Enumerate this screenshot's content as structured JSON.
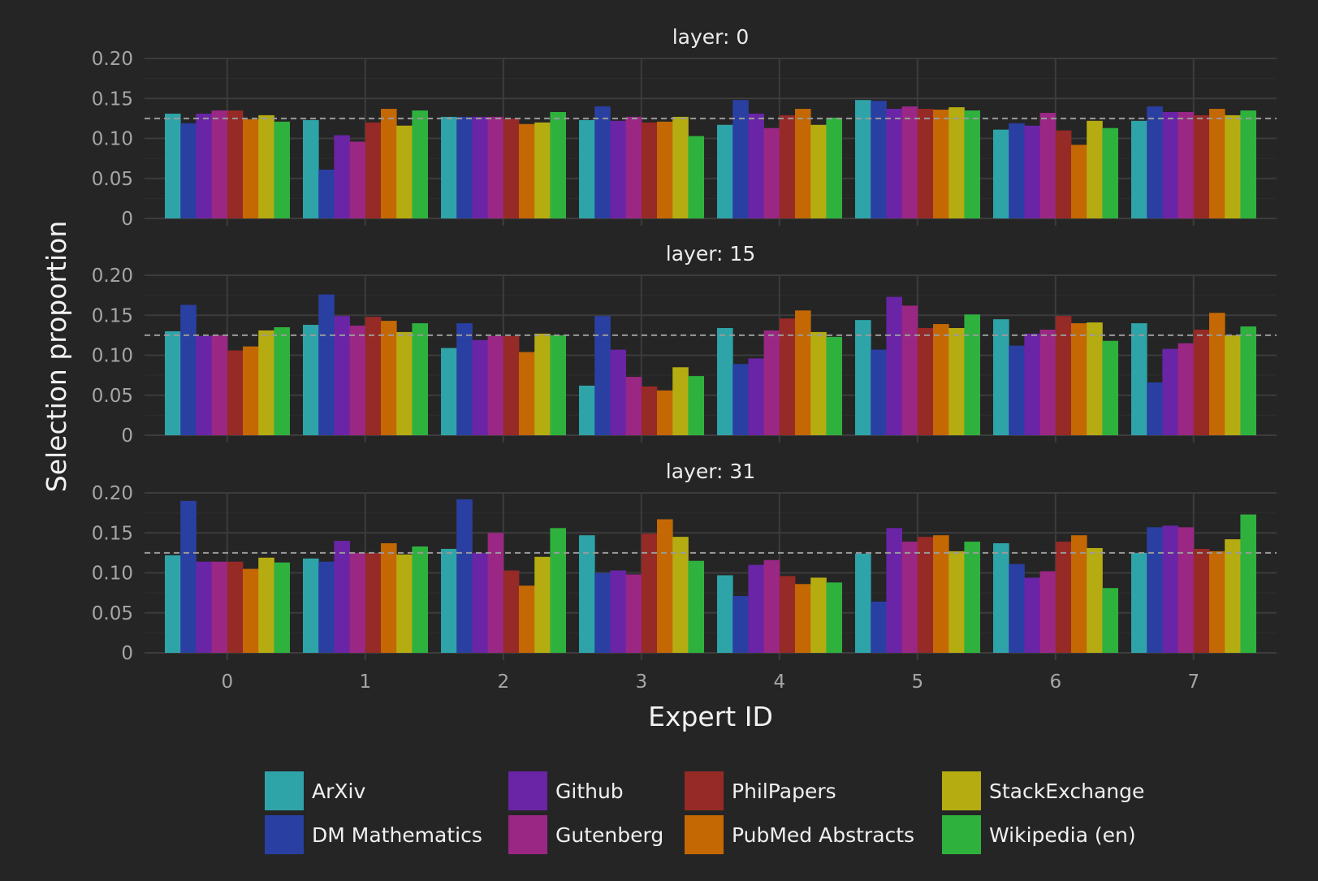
{
  "chart_data": {
    "type": "bar",
    "xlabel": "Expert ID",
    "ylabel": "Selection proportion",
    "categories": [
      "0",
      "1",
      "2",
      "3",
      "4",
      "5",
      "6",
      "7"
    ],
    "ylim": [
      0,
      0.2
    ],
    "yticks": [
      0,
      0.05,
      0.1,
      0.15,
      0.2
    ],
    "ytick_labels": [
      "0",
      "0.05",
      "0.10",
      "0.15",
      "0.20"
    ],
    "reference_line": 0.125,
    "grid": true,
    "legend_position": "bottom",
    "series_colors": {
      "ArXiv": "#2fa4a8",
      "DM Mathematics": "#2a3fa2",
      "Github": "#6a24a6",
      "Gutenberg": "#9a2784",
      "PhilPapers": "#962a26",
      "PubMed Abstracts": "#c46804",
      "StackExchange": "#b5ac12",
      "Wikipedia (en)": "#2fb13e"
    },
    "panels": [
      {
        "title": "layer: 0",
        "series": [
          {
            "name": "ArXiv",
            "values": [
              0.131,
              0.123,
              0.127,
              0.123,
              0.117,
              0.148,
              0.111,
              0.122
            ]
          },
          {
            "name": "DM Mathematics",
            "values": [
              0.119,
              0.061,
              0.127,
              0.14,
              0.148,
              0.147,
              0.119,
              0.14
            ]
          },
          {
            "name": "Github",
            "values": [
              0.131,
              0.104,
              0.127,
              0.122,
              0.131,
              0.137,
              0.116,
              0.133
            ]
          },
          {
            "name": "Gutenberg",
            "values": [
              0.135,
              0.096,
              0.127,
              0.127,
              0.113,
              0.14,
              0.132,
              0.133
            ]
          },
          {
            "name": "PhilPapers",
            "values": [
              0.135,
              0.12,
              0.125,
              0.12,
              0.129,
              0.137,
              0.11,
              0.129
            ]
          },
          {
            "name": "PubMed Abstracts",
            "values": [
              0.124,
              0.137,
              0.118,
              0.121,
              0.137,
              0.136,
              0.092,
              0.137
            ]
          },
          {
            "name": "StackExchange",
            "values": [
              0.129,
              0.116,
              0.12,
              0.127,
              0.117,
              0.139,
              0.122,
              0.129
            ]
          },
          {
            "name": "Wikipedia (en)",
            "values": [
              0.121,
              0.135,
              0.133,
              0.103,
              0.126,
              0.135,
              0.113,
              0.135
            ]
          }
        ]
      },
      {
        "title": "layer: 15",
        "series": [
          {
            "name": "ArXiv",
            "values": [
              0.13,
              0.138,
              0.109,
              0.062,
              0.134,
              0.144,
              0.145,
              0.14
            ]
          },
          {
            "name": "DM Mathematics",
            "values": [
              0.163,
              0.176,
              0.14,
              0.149,
              0.089,
              0.107,
              0.112,
              0.066
            ]
          },
          {
            "name": "Github",
            "values": [
              0.124,
              0.149,
              0.119,
              0.107,
              0.096,
              0.173,
              0.127,
              0.108
            ]
          },
          {
            "name": "Gutenberg",
            "values": [
              0.125,
              0.137,
              0.124,
              0.073,
              0.131,
              0.162,
              0.132,
              0.115
            ]
          },
          {
            "name": "PhilPapers",
            "values": [
              0.106,
              0.148,
              0.124,
              0.061,
              0.146,
              0.134,
              0.149,
              0.132
            ]
          },
          {
            "name": "PubMed Abstracts",
            "values": [
              0.111,
              0.143,
              0.104,
              0.056,
              0.156,
              0.139,
              0.14,
              0.153
            ]
          },
          {
            "name": "StackExchange",
            "values": [
              0.131,
              0.129,
              0.127,
              0.085,
              0.129,
              0.134,
              0.141,
              0.125
            ]
          },
          {
            "name": "Wikipedia (en)",
            "values": [
              0.135,
              0.14,
              0.125,
              0.074,
              0.123,
              0.151,
              0.118,
              0.136
            ]
          }
        ]
      },
      {
        "title": "layer: 31",
        "series": [
          {
            "name": "ArXiv",
            "values": [
              0.122,
              0.118,
              0.13,
              0.147,
              0.097,
              0.124,
              0.137,
              0.125
            ]
          },
          {
            "name": "DM Mathematics",
            "values": [
              0.19,
              0.114,
              0.192,
              0.1,
              0.071,
              0.064,
              0.111,
              0.157
            ]
          },
          {
            "name": "Github",
            "values": [
              0.114,
              0.14,
              0.125,
              0.103,
              0.11,
              0.156,
              0.094,
              0.159
            ]
          },
          {
            "name": "Gutenberg",
            "values": [
              0.114,
              0.125,
              0.15,
              0.098,
              0.116,
              0.139,
              0.102,
              0.157
            ]
          },
          {
            "name": "PhilPapers",
            "values": [
              0.114,
              0.125,
              0.103,
              0.149,
              0.096,
              0.145,
              0.139,
              0.13
            ]
          },
          {
            "name": "PubMed Abstracts",
            "values": [
              0.105,
              0.137,
              0.084,
              0.167,
              0.086,
              0.147,
              0.147,
              0.127
            ]
          },
          {
            "name": "StackExchange",
            "values": [
              0.119,
              0.123,
              0.12,
              0.145,
              0.094,
              0.127,
              0.131,
              0.142
            ]
          },
          {
            "name": "Wikipedia (en)",
            "values": [
              0.113,
              0.133,
              0.156,
              0.115,
              0.088,
              0.139,
              0.081,
              0.173
            ]
          }
        ]
      }
    ]
  }
}
